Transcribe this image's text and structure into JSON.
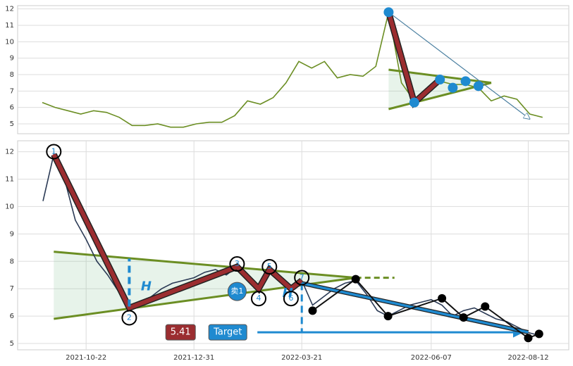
{
  "chart_data": [
    {
      "type": "line",
      "values": [
        6.3,
        6.0,
        5.8,
        5.6,
        5.8,
        5.7,
        5.4,
        4.9,
        4.9,
        5.0,
        4.8,
        4.8,
        5.0,
        5.1,
        5.1,
        5.5,
        6.4,
        6.2,
        6.6,
        7.5,
        8.8,
        8.4,
        8.8,
        7.8,
        8.0,
        7.9,
        8.5,
        11.8,
        7.5,
        6.4,
        7.0,
        7.6,
        7.4,
        7.4,
        7.2,
        6.4,
        6.7,
        6.5,
        5.6,
        5.4
      ],
      "color": "#6b8e23",
      "ylim": [
        4.4,
        12.2
      ],
      "yticks": [
        5,
        6,
        7,
        8,
        9,
        10,
        11,
        12
      ],
      "grid": true,
      "pattern": {
        "index": [
          27,
          29,
          31
        ],
        "values": [
          11.8,
          6.3,
          7.7
        ],
        "color": "#9b2d30"
      },
      "markers": {
        "index": [
          27,
          29,
          31,
          32,
          33,
          34
        ],
        "values": [
          11.8,
          6.3,
          7.7,
          7.2,
          7.6,
          7.3
        ],
        "color": "#1f8ad0"
      },
      "triangle": {
        "index": [
          27,
          35
        ],
        "upper": [
          8.3,
          7.5
        ],
        "lower": [
          5.9,
          7.5
        ]
      },
      "arrow": {
        "index": [
          27,
          38
        ],
        "values": [
          11.8,
          5.3
        ]
      }
    },
    {
      "type": "line",
      "x": [
        "2021-09-24",
        "2021-09-30",
        "2021-10-08",
        "2021-10-15",
        "2021-10-22",
        "2021-10-29",
        "2021-11-05",
        "2021-11-12",
        "2021-11-19",
        "2021-11-26",
        "2021-12-03",
        "2021-12-10",
        "2021-12-17",
        "2021-12-24",
        "2021-12-31",
        "2022-01-07",
        "2022-01-14",
        "2022-01-21",
        "2022-01-28",
        "2022-02-11",
        "2022-02-18",
        "2022-02-25",
        "2022-03-04",
        "2022-03-11",
        "2022-03-21",
        "2022-03-25",
        "2022-04-01",
        "2022-04-08",
        "2022-04-15",
        "2022-04-22",
        "2022-04-29",
        "2022-05-06",
        "2022-05-13",
        "2022-05-20",
        "2022-05-27",
        "2022-06-02",
        "2022-06-07",
        "2022-06-17",
        "2022-06-24",
        "2022-07-01",
        "2022-07-08",
        "2022-07-15",
        "2022-07-22",
        "2022-07-29",
        "2022-08-05",
        "2022-08-12",
        "2022-08-19"
      ],
      "values": [
        10.2,
        11.9,
        11.0,
        9.5,
        8.8,
        8.0,
        7.5,
        6.9,
        6.3,
        6.5,
        6.7,
        7.0,
        7.2,
        7.3,
        7.4,
        7.6,
        7.7,
        7.5,
        7.8,
        7.3,
        7.0,
        7.7,
        7.3,
        7.0,
        7.3,
        6.4,
        6.7,
        7.0,
        7.2,
        7.3,
        6.8,
        6.2,
        6.0,
        6.2,
        6.4,
        6.5,
        6.6,
        6.4,
        6.0,
        6.2,
        6.3,
        6.1,
        5.9,
        5.8,
        5.6,
        5.4,
        5.3
      ],
      "color": "#2b3a55",
      "ylim": [
        4.77,
        12.4
      ],
      "yticks": [
        5,
        6,
        7,
        8,
        9,
        10,
        11,
        12
      ],
      "xticks": [
        "2021-10-22",
        "2021-12-31",
        "2022-03-21",
        "2022-06-07",
        "2022-08-12"
      ],
      "grid": true,
      "zigzag": {
        "x": [
          "2021-09-30",
          "2021-11-19",
          "2022-01-28",
          "2022-02-18",
          "2022-02-25",
          "2022-03-11",
          "2022-03-21"
        ],
        "values": [
          11.9,
          6.3,
          7.8,
          7.0,
          7.7,
          7.0,
          7.3
        ],
        "labels": [
          "1",
          "2",
          "3",
          "4",
          "5",
          "6",
          "7"
        ],
        "color": "#9b2d30"
      },
      "triangle": {
        "x": [
          "2021-09-30",
          "2022-04-22"
        ],
        "upper": [
          8.35,
          7.4
        ],
        "lower": [
          5.9,
          7.4
        ],
        "color": "#6b8e23"
      },
      "wave": {
        "x": [
          "2022-03-25",
          "2022-04-22",
          "2022-05-13",
          "2022-06-17",
          "2022-07-01",
          "2022-07-15",
          "2022-08-12",
          "2022-08-19"
        ],
        "values": [
          6.2,
          7.35,
          6.0,
          6.65,
          5.95,
          6.35,
          5.2,
          5.35
        ]
      },
      "sell": {
        "label": "卖1",
        "x": "2022-01-28",
        "value": 6.9
      },
      "h_label": "H",
      "height_line": {
        "x": "2021-11-19",
        "values": [
          6.35,
          8.1
        ]
      },
      "target": {
        "label": "Target",
        "value": 5.41,
        "start": 7.2,
        "x": [
          "2022-03-21",
          "2022-08-12"
        ],
        "color": "#1f8ad0"
      }
    }
  ]
}
